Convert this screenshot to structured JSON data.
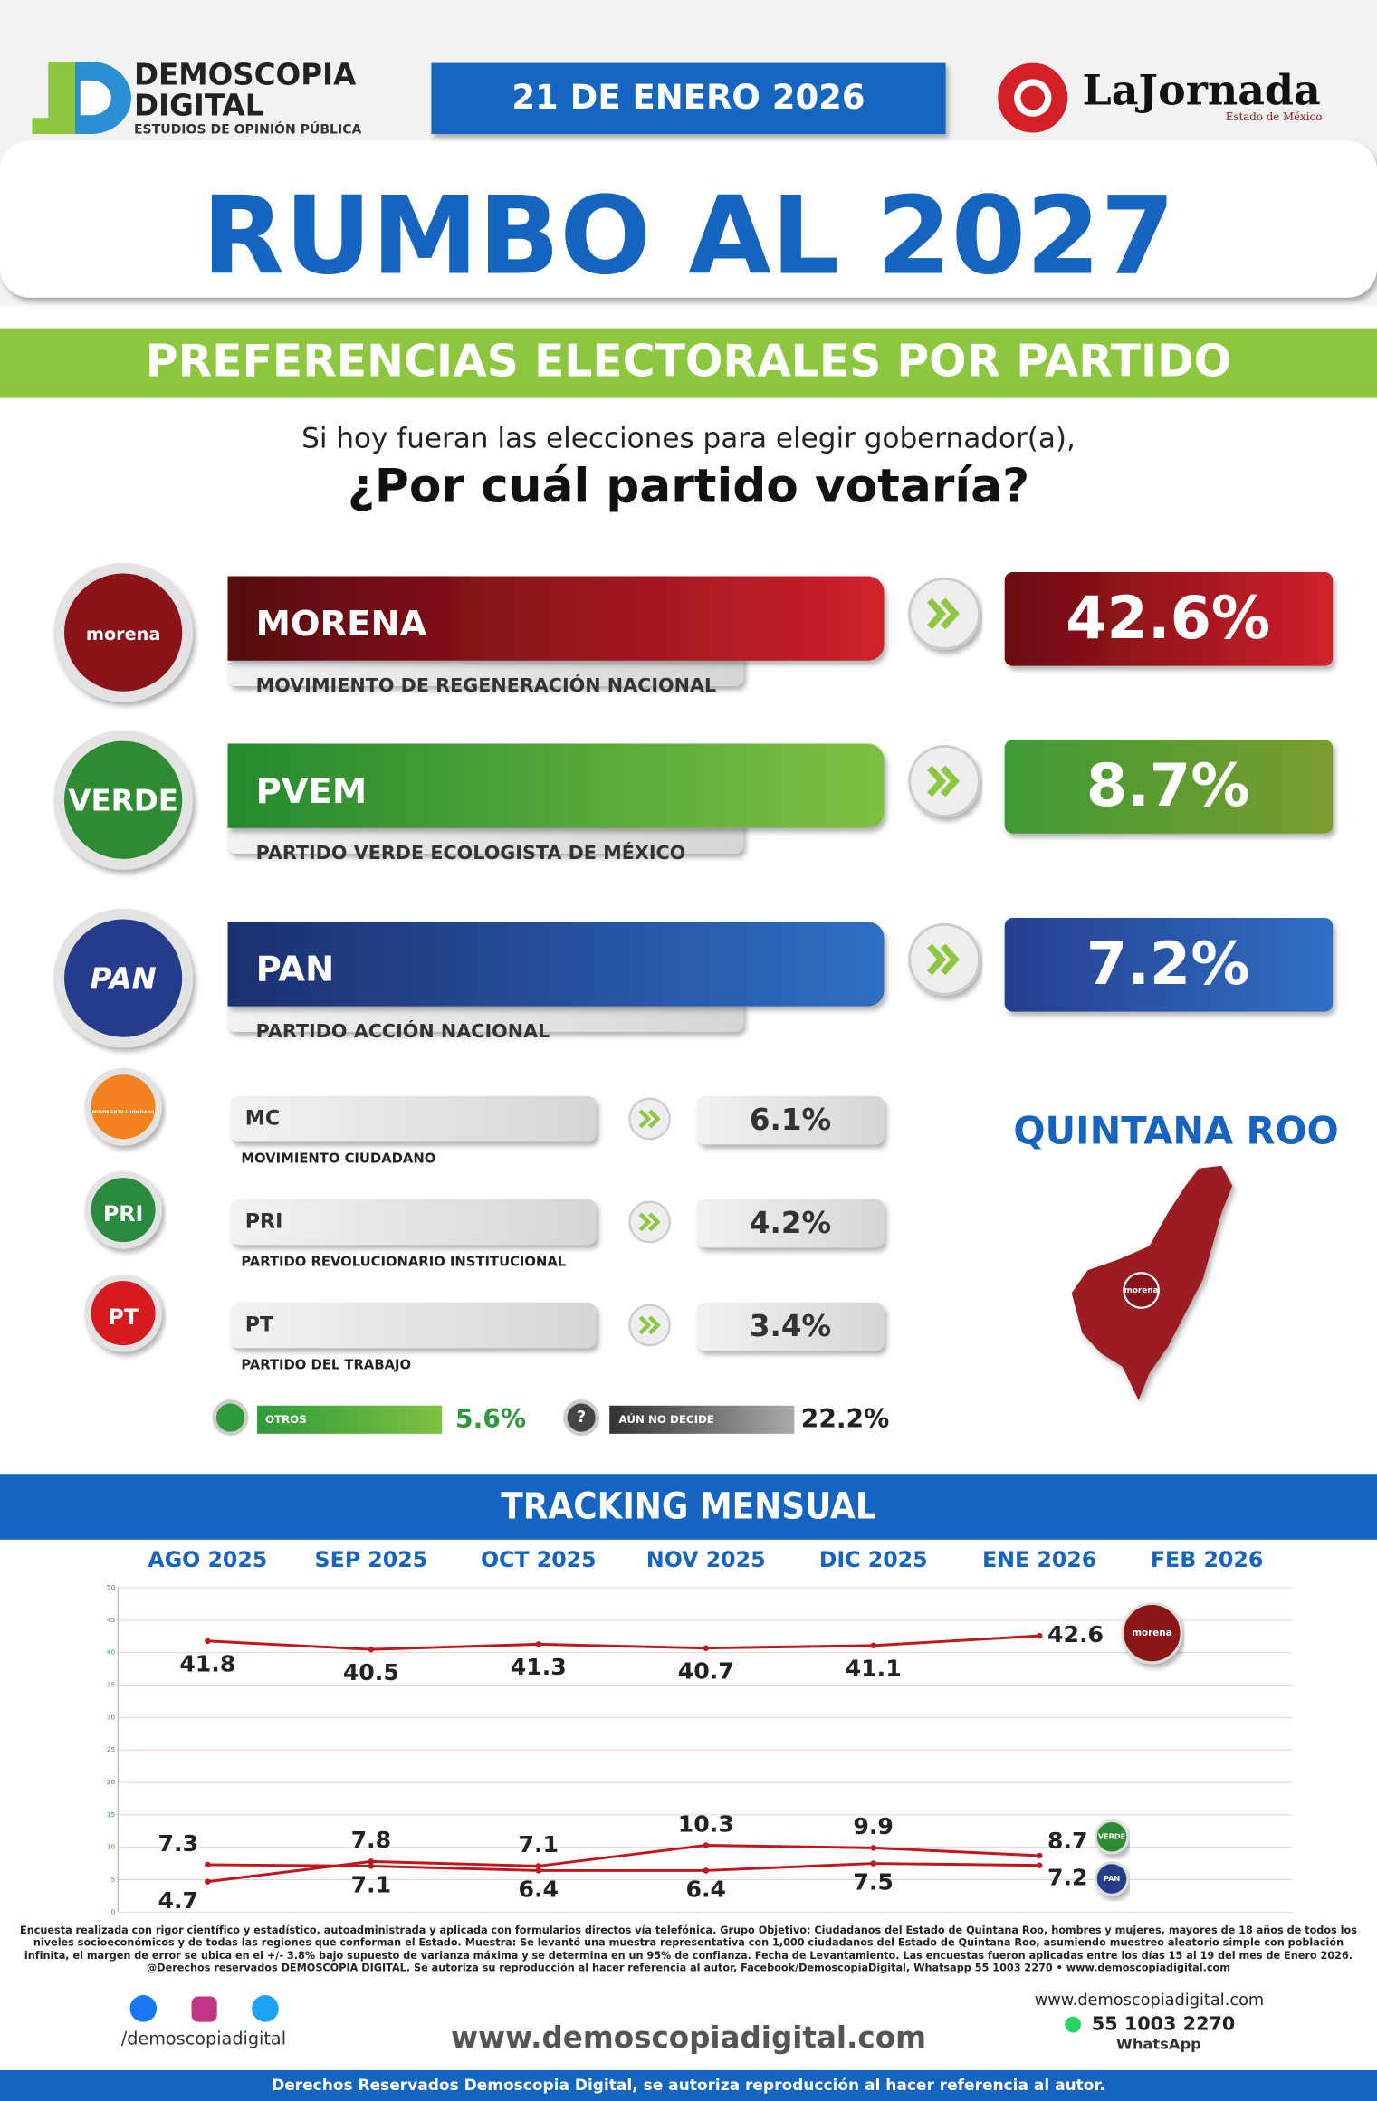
{
  "header": {
    "brand_name": "DEMOSCOPIA",
    "brand_name2": "DIGITAL",
    "brand_tagline": "ESTUDIOS DE OPINIÓN PÚBLICA",
    "date": "21 DE ENERO 2026",
    "partner": "LaJornada",
    "partner_sub": "Estado de México",
    "title": "RUMBO AL 2027"
  },
  "section_title": "PREFERENCIAS ELECTORALES POR PARTIDO",
  "question_line1": "Si hoy fueran las elecciones para elegir gobernador(a),",
  "question_line2": "¿Por cuál partido votaría?",
  "main_parties": [
    {
      "logo": "morena",
      "name": "MORENA",
      "full_name": "MOVIMIENTO DE REGENERACIÓN NACIONAL",
      "result": "42.6%"
    },
    {
      "logo": "VERDE",
      "name": "PVEM",
      "full_name": "PARTIDO VERDE ECOLOGISTA DE MÉXICO",
      "result": "8.7%"
    },
    {
      "logo": "PAN",
      "name": "PAN",
      "full_name": "PARTIDO ACCIÓN NACIONAL",
      "result": "7.2%"
    }
  ],
  "minor_parties": [
    {
      "logo": "MOVIMIENTO CIUDADANO",
      "name": "MC",
      "full_name": "MOVIMIENTO CIUDADANO",
      "result": "6.1%"
    },
    {
      "logo": "PRI",
      "name": "PRI",
      "full_name": "PARTIDO REVOLUCIONARIO INSTITUCIONAL",
      "result": "4.2%"
    },
    {
      "logo": "PT",
      "name": "PT",
      "full_name": "PARTIDO DEL TRABAJO",
      "result": "3.4%"
    }
  ],
  "others": {
    "label": "OTROS",
    "result": "5.6%"
  },
  "undecided": {
    "label": "AÚN NO DECIDE",
    "result": "22.2%"
  },
  "state": {
    "name": "QUINTANA ROO",
    "logo": "morena"
  },
  "tracking_title": "TRACKING MENSUAL",
  "chart_data": {
    "type": "line",
    "categories": [
      "AGO 2025",
      "SEP 2025",
      "OCT 2025",
      "NOV 2025",
      "DIC 2025",
      "ENE 2026",
      "FEB 2026"
    ],
    "series": [
      {
        "name": "morena",
        "color": "#c0161d",
        "values": [
          41.8,
          40.5,
          41.3,
          40.7,
          41.1,
          42.6,
          null
        ]
      },
      {
        "name": "VERDE",
        "color": "#c0161d",
        "values": [
          4.7,
          7.8,
          7.1,
          10.3,
          9.9,
          8.7,
          null
        ]
      },
      {
        "name": "PAN",
        "color": "#c0161d",
        "values": [
          7.3,
          7.1,
          6.4,
          6.4,
          7.5,
          7.2,
          null
        ]
      }
    ],
    "ylim": [
      0,
      50
    ],
    "yticks": [
      0,
      5,
      10,
      15,
      20,
      25,
      30,
      35,
      40,
      45,
      50
    ],
    "grid": true
  },
  "footer": {
    "methodology": "Encuesta realizada con rigor científico y estadístico, autoadministrada y aplicada con formularios directos vía telefónica. Grupo Objetivo: Ciudadanos del Estado de Quintana Roo, hombres y mujeres, mayores de 18 años de todos los niveles socioeconómicos y de todas las regiones que conforman el Estado. Muestra: Se levantó una muestra representativa con 1,000 ciudadanos del Estado de Quintana Roo, asumiendo muestreo aleatorio simple con población infinita, el margen de error se ubica en el +/- 3.8% bajo supuesto de varianza máxima y se determina en un 95% de confianza. Fecha de Levantamiento. Las encuestas fueron aplicadas entre los días 15 al 19 del mes de Enero 2026. @Derechos reservados DEMOSCOPIA DIGITAL. Se autoriza su reproducción al hacer referencia al autor, Facebook/DemoscopiaDigital, Whatsapp 55 1003 2270 • www.demoscopiadigital.com",
    "social": "/demoscopiadigital",
    "website_small": "www.demoscopiadigital.com",
    "phone": "55 1003 2270",
    "whatsapp": "WhatsApp",
    "website": "www.demoscopiadigital.com",
    "rights": "Derechos Reservados Demoscopia Digital, se autoriza reproducción al hacer referencia al autor."
  }
}
